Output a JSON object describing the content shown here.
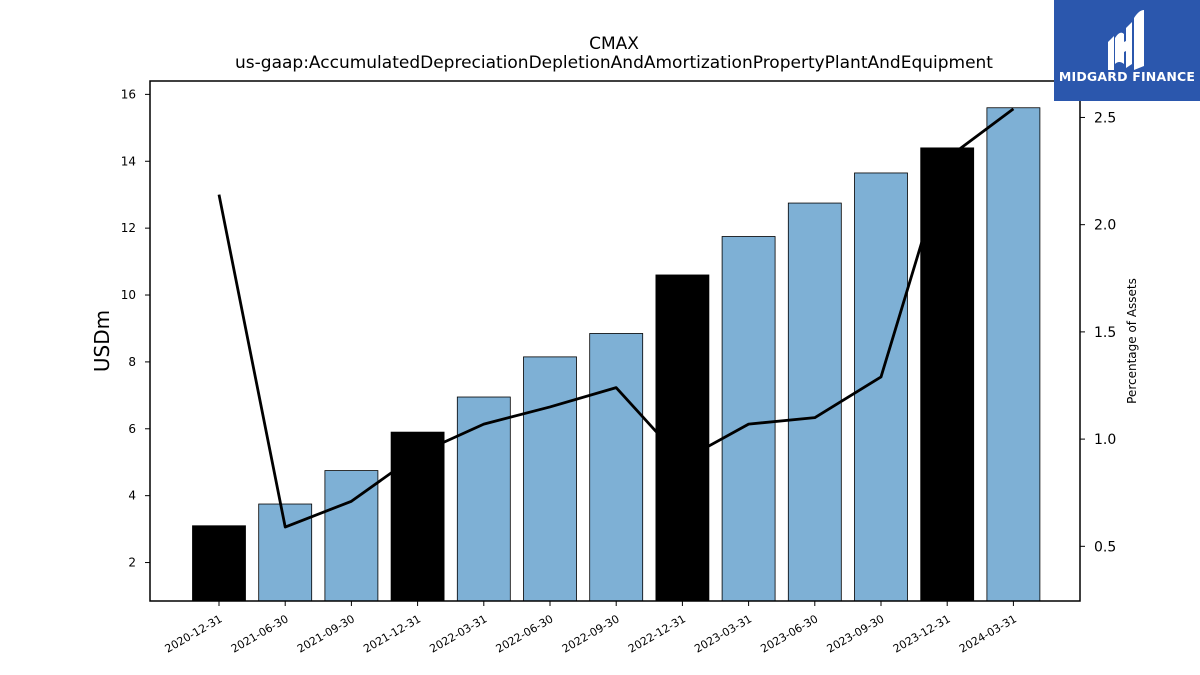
{
  "chart_data": {
    "type": "bar",
    "title": "CMAX",
    "subtitle": "us-gaap:AccumulatedDepreciationDepletionAndAmortizationPropertyPlantAndEquipment",
    "ylabel": "USDm",
    "y2label": "Percentage of Assets",
    "categories": [
      "2020-12-31",
      "2021-06-30",
      "2021-09-30",
      "2021-12-31",
      "2022-03-31",
      "2022-06-30",
      "2022-09-30",
      "2022-12-31",
      "2023-03-31",
      "2023-06-30",
      "2023-09-30",
      "2023-12-31",
      "2024-03-31"
    ],
    "series": [
      {
        "kind": "bar",
        "values": [
          3.1,
          3.75,
          4.75,
          5.9,
          6.95,
          8.15,
          8.85,
          10.6,
          11.75,
          12.75,
          13.65,
          14.4,
          15.6
        ],
        "colors": [
          "#000000",
          "#7eb0d5",
          "#7eb0d5",
          "#000000",
          "#7eb0d5",
          "#7eb0d5",
          "#7eb0d5",
          "#000000",
          "#7eb0d5",
          "#7eb0d5",
          "#7eb0d5",
          "#000000",
          "#7eb0d5"
        ]
      },
      {
        "kind": "line",
        "axis": "right",
        "color": "#000000",
        "values": [
          2.14,
          0.59,
          0.71,
          0.93,
          1.07,
          1.15,
          1.24,
          0.9,
          1.07,
          1.1,
          1.29,
          2.31,
          2.54
        ]
      }
    ],
    "ylim": [
      0.85,
      16.4
    ],
    "yticks": [
      2,
      4,
      6,
      8,
      10,
      12,
      14,
      16
    ],
    "y2lim": [
      0.245,
      2.67
    ],
    "y2ticks": [
      "0.5",
      "1.0",
      "1.5",
      "2.0",
      "2.5"
    ],
    "grid": false,
    "legend": "none"
  },
  "logo": {
    "text": "MIDGARD FINANCE",
    "background": "#2b57ad",
    "icon": "midgard-logo-icon"
  }
}
